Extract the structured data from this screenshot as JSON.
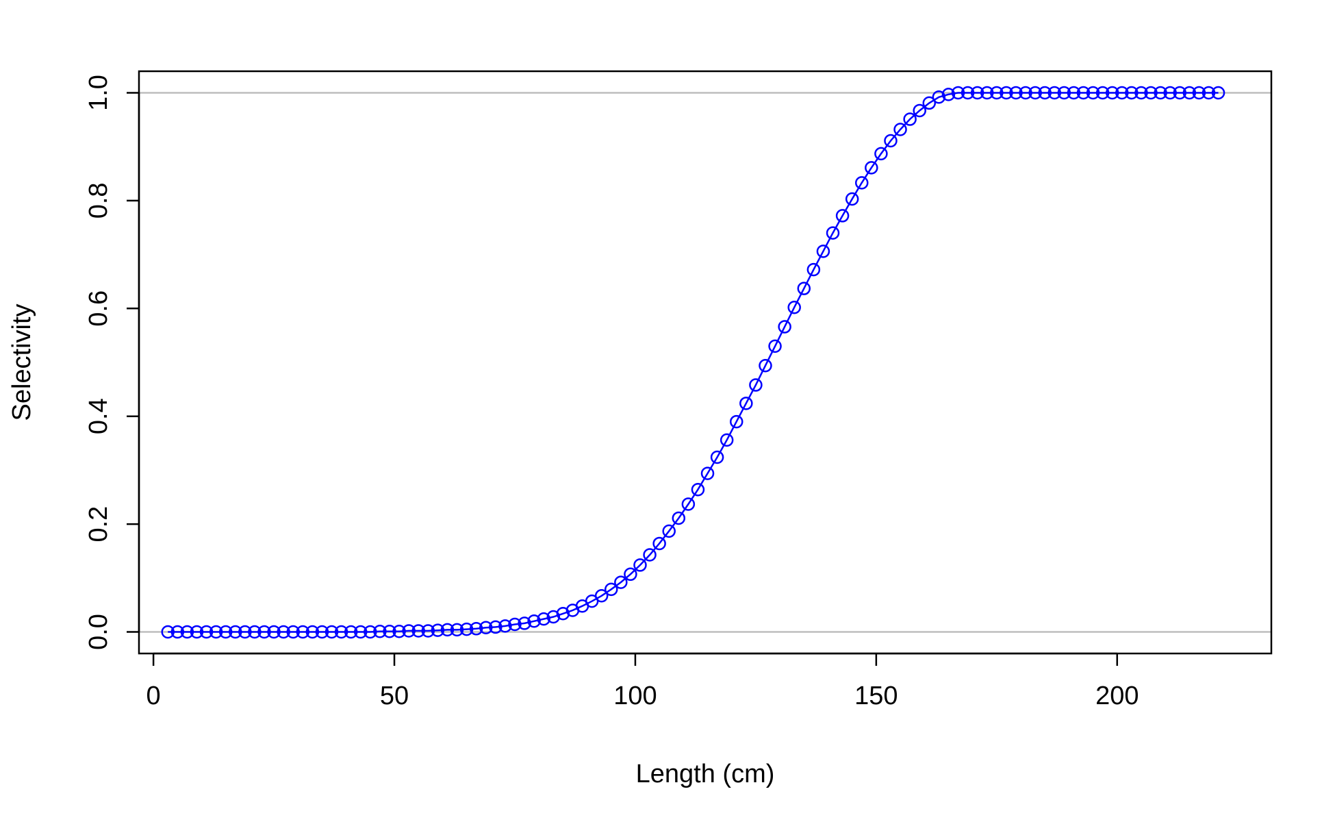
{
  "chart_data": {
    "type": "line",
    "title": "",
    "xlabel": "Length (cm)",
    "ylabel": "Selectivity",
    "xlim": [
      -3,
      232
    ],
    "ylim": [
      -0.04,
      1.04
    ],
    "x_ticks": [
      0,
      50,
      100,
      150,
      200
    ],
    "x_tick_labels": [
      "0",
      "50",
      "100",
      "150",
      "200"
    ],
    "y_ticks": [
      0.0,
      0.2,
      0.4,
      0.6,
      0.8,
      1.0
    ],
    "y_tick_labels": [
      "0.0",
      "0.2",
      "0.4",
      "0.6",
      "0.8",
      "1.0"
    ],
    "reference_lines": [
      0,
      1
    ],
    "grid": false,
    "colors": {
      "series": "#0000ff",
      "reference": "#bebebe",
      "frame": "#000000"
    },
    "series": [
      {
        "x": [
          3,
          5,
          7,
          9,
          11,
          13,
          15,
          17,
          19,
          21,
          23,
          25,
          27,
          29,
          31,
          33,
          35,
          37,
          39,
          41,
          43,
          45,
          47,
          49,
          51,
          53,
          55,
          57,
          59,
          61,
          63,
          65,
          67,
          69,
          71,
          73,
          75,
          77,
          79,
          81,
          83,
          85,
          87,
          89,
          91,
          93,
          95,
          97,
          99,
          101,
          103,
          105,
          107,
          109,
          111,
          113,
          115,
          117,
          119,
          121,
          123,
          125,
          127,
          129,
          131,
          133,
          135,
          137,
          139,
          141,
          143,
          145,
          147,
          149,
          151,
          153,
          155,
          157,
          159,
          161,
          163,
          165,
          167,
          169,
          171,
          173,
          175,
          177,
          179,
          181,
          183,
          185,
          187,
          189,
          191,
          193,
          195,
          197,
          199,
          201,
          203,
          205,
          207,
          209,
          211,
          213,
          215,
          217,
          219,
          221
        ],
        "y": [
          0.0,
          0.0,
          0.0,
          0.0,
          0.0,
          0.0,
          0.0,
          0.0,
          0.0,
          0.0,
          0.0,
          0.0,
          0.0,
          0.0,
          0.0,
          0.0,
          0.0,
          0.0,
          0.0,
          0.0,
          0.0,
          0.0,
          0.001,
          0.001,
          0.001,
          0.002,
          0.002,
          0.002,
          0.003,
          0.004,
          0.004,
          0.005,
          0.006,
          0.008,
          0.009,
          0.011,
          0.014,
          0.016,
          0.02,
          0.024,
          0.028,
          0.034,
          0.04,
          0.048,
          0.057,
          0.067,
          0.079,
          0.092,
          0.107,
          0.124,
          0.143,
          0.164,
          0.187,
          0.211,
          0.237,
          0.264,
          0.294,
          0.324,
          0.356,
          0.39,
          0.424,
          0.458,
          0.494,
          0.53,
          0.566,
          0.602,
          0.637,
          0.672,
          0.706,
          0.74,
          0.772,
          0.803,
          0.833,
          0.861,
          0.887,
          0.911,
          0.932,
          0.951,
          0.967,
          0.981,
          0.992,
          0.997,
          1.0,
          1.0,
          1.0,
          1.0,
          1.0,
          1.0,
          1.0,
          1.0,
          1.0,
          1.0,
          1.0,
          1.0,
          1.0,
          1.0,
          1.0,
          1.0,
          1.0,
          1.0,
          1.0,
          1.0,
          1.0,
          1.0,
          1.0,
          1.0,
          1.0,
          1.0,
          1.0,
          1.0
        ]
      }
    ]
  }
}
